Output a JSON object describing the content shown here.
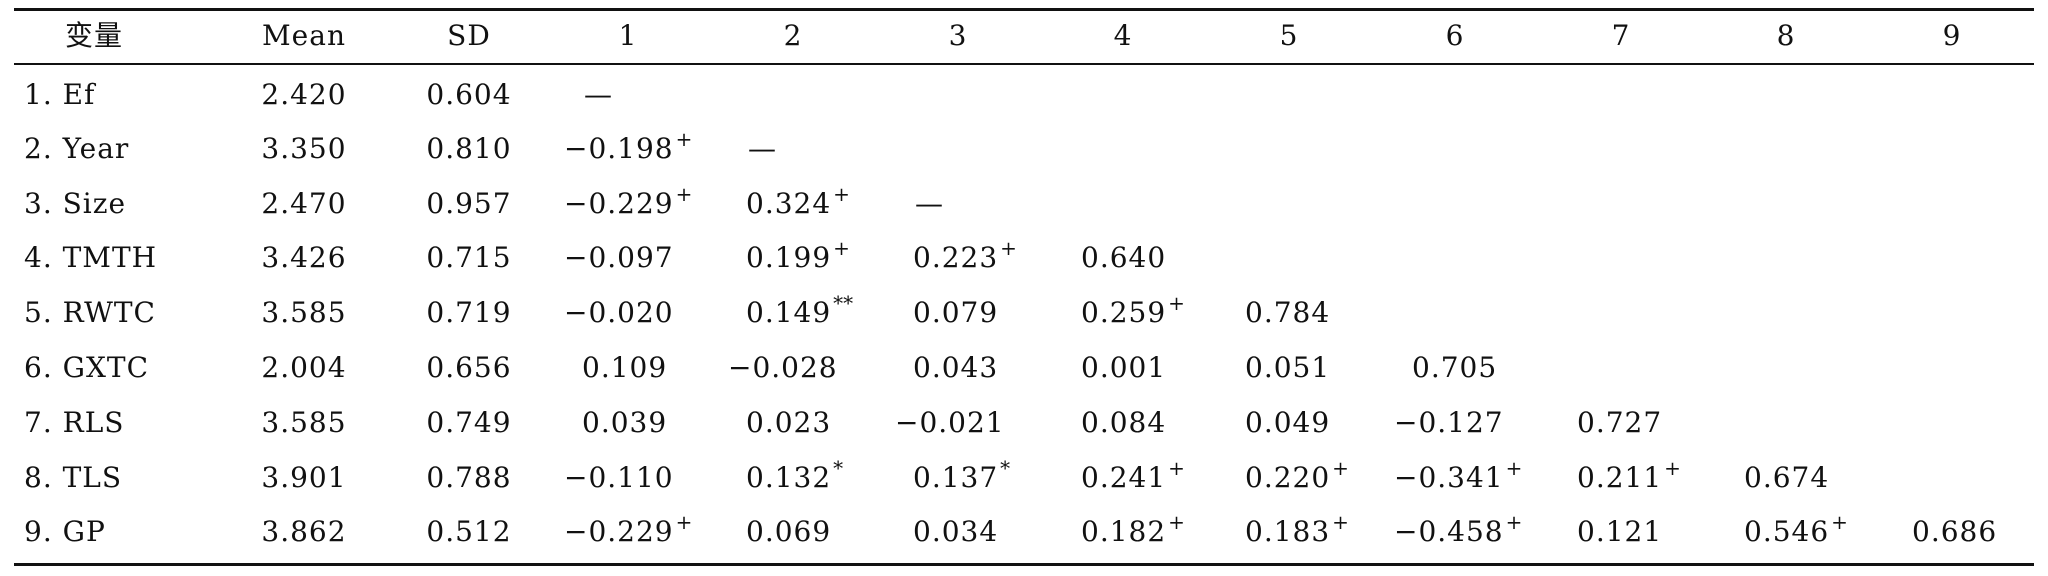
{
  "table": {
    "headers": [
      "变量",
      "Mean",
      "SD",
      "1",
      "2",
      "3",
      "4",
      "5",
      "6",
      "7",
      "8",
      "9"
    ],
    "rows": [
      {
        "name": "1. Ef",
        "mean": "2.420",
        "sd": "0.604",
        "vals": [
          {
            "v": "—",
            "s": ""
          }
        ]
      },
      {
        "name": "2. Year",
        "mean": "3.350",
        "sd": "0.810",
        "vals": [
          {
            "v": "−0.198",
            "s": "+"
          },
          {
            "v": "—",
            "s": ""
          }
        ]
      },
      {
        "name": "3. Size",
        "mean": "2.470",
        "sd": "0.957",
        "vals": [
          {
            "v": "−0.229",
            "s": "+"
          },
          {
            "v": "0.324",
            "s": "+"
          },
          {
            "v": "—",
            "s": ""
          }
        ]
      },
      {
        "name": "4. TMTH",
        "mean": "3.426",
        "sd": "0.715",
        "vals": [
          {
            "v": "−0.097",
            "s": ""
          },
          {
            "v": "0.199",
            "s": "+"
          },
          {
            "v": "0.223",
            "s": "+"
          },
          {
            "v": "0.640",
            "s": ""
          }
        ]
      },
      {
        "name": "5. RWTC",
        "mean": "3.585",
        "sd": "0.719",
        "vals": [
          {
            "v": "−0.020",
            "s": ""
          },
          {
            "v": "0.149",
            "s": "**"
          },
          {
            "v": "0.079",
            "s": ""
          },
          {
            "v": "0.259",
            "s": "+"
          },
          {
            "v": "0.784",
            "s": ""
          }
        ]
      },
      {
        "name": "6. GXTC",
        "mean": "2.004",
        "sd": "0.656",
        "vals": [
          {
            "v": "0.109",
            "s": ""
          },
          {
            "v": "−0.028",
            "s": ""
          },
          {
            "v": "0.043",
            "s": ""
          },
          {
            "v": "0.001",
            "s": ""
          },
          {
            "v": "0.051",
            "s": ""
          },
          {
            "v": "0.705",
            "s": ""
          }
        ]
      },
      {
        "name": "7. RLS",
        "mean": "3.585",
        "sd": "0.749",
        "vals": [
          {
            "v": "0.039",
            "s": ""
          },
          {
            "v": "0.023",
            "s": ""
          },
          {
            "v": "−0.021",
            "s": ""
          },
          {
            "v": "0.084",
            "s": ""
          },
          {
            "v": "0.049",
            "s": ""
          },
          {
            "v": "−0.127",
            "s": ""
          },
          {
            "v": "0.727",
            "s": ""
          }
        ]
      },
      {
        "name": "8. TLS",
        "mean": "3.901",
        "sd": "0.788",
        "vals": [
          {
            "v": "−0.110",
            "s": ""
          },
          {
            "v": "0.132",
            "s": "*"
          },
          {
            "v": "0.137",
            "s": "*"
          },
          {
            "v": "0.241",
            "s": "+"
          },
          {
            "v": "0.220",
            "s": "+"
          },
          {
            "v": "−0.341",
            "s": "+"
          },
          {
            "v": "0.211",
            "s": "+"
          },
          {
            "v": "0.674",
            "s": ""
          }
        ]
      },
      {
        "name": "9. GP",
        "mean": "3.862",
        "sd": "0.512",
        "vals": [
          {
            "v": "−0.229",
            "s": "+"
          },
          {
            "v": "0.069",
            "s": ""
          },
          {
            "v": "0.034",
            "s": ""
          },
          {
            "v": "0.182",
            "s": "+"
          },
          {
            "v": "0.183",
            "s": "+"
          },
          {
            "v": "−0.458",
            "s": "+"
          },
          {
            "v": "0.121",
            "s": ""
          },
          {
            "v": "0.546",
            "s": "+"
          },
          {
            "v": "0.686",
            "s": ""
          }
        ]
      }
    ]
  }
}
